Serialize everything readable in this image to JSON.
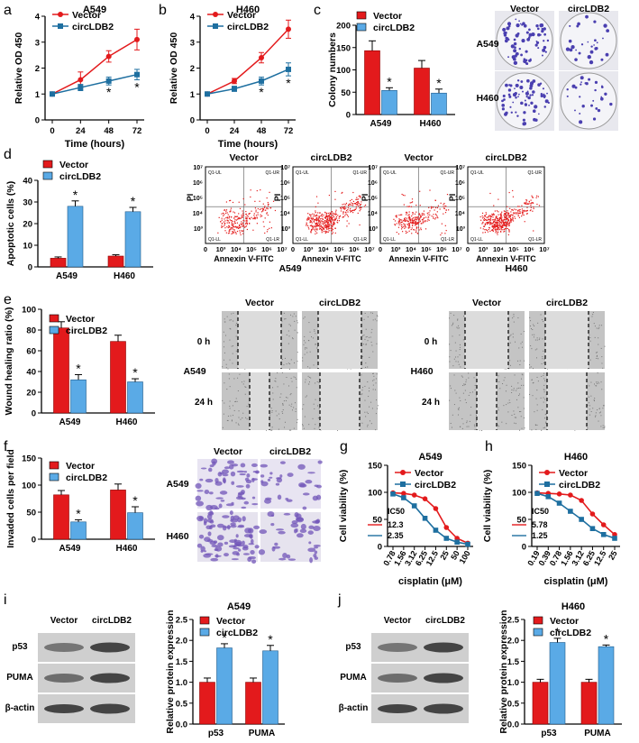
{
  "colors": {
    "vector": "#e31a1c",
    "circ": "#1e6fa0",
    "circ_bar": "#5aaae6",
    "dot": "#e41c1c",
    "gel": "#cfcfcf",
    "band": "#2b2b2b",
    "plate": "#f4f4f8",
    "colony": "#4a3fb0",
    "stain": "#7256b8"
  },
  "legend": {
    "vector": "Vector",
    "circ": "circLDB2"
  },
  "panels": {
    "a": {
      "letter": "a",
      "cell": "A549"
    },
    "b": {
      "letter": "b",
      "cell": "H460"
    },
    "c": {
      "letter": "c",
      "images": {
        "col_vector": "Vector",
        "col_circ": "circLDB2",
        "row1": "A549",
        "row2": "H460"
      }
    },
    "d": {
      "letter": "d",
      "flow_titles": [
        "Vector",
        "circLDB2",
        "Vector",
        "circLDB2"
      ],
      "flow_xlabel": "Annexin V-FITC",
      "flow_ylabel": "PI",
      "flow_quads": [
        "Q1-UL",
        "Q1-UR",
        "Q1-LL",
        "Q1-LR"
      ],
      "flow_cells": [
        "A549",
        "H460"
      ],
      "flow_ticks": [
        "0",
        "10³",
        "10⁴",
        "10⁵",
        "10⁶",
        "10⁷"
      ],
      "flow_yticks": [
        "0",
        "10³",
        "10⁴",
        "10⁵",
        "10⁶",
        "10⁷"
      ]
    },
    "e": {
      "letter": "e",
      "img_cols": [
        "Vector",
        "circLDB2"
      ],
      "img_rows": [
        "0 h",
        "24 h"
      ],
      "cells": [
        "A549",
        "H460"
      ]
    },
    "f": {
      "letter": "f",
      "img_cols": [
        "Vector",
        "circLDB2"
      ],
      "img_rows": [
        "A549",
        "H460"
      ]
    },
    "g": {
      "letter": "g",
      "cell": "A549",
      "ic50_title": "IC50",
      "ic50": [
        "12.3",
        "2.35"
      ]
    },
    "h": {
      "letter": "h",
      "cell": "H460",
      "ic50_title": "IC50",
      "ic50": [
        "5.78",
        "1.25"
      ]
    },
    "i": {
      "letter": "i",
      "cell": "A549",
      "blot_cols": [
        "Vector",
        "circLDB2"
      ],
      "blot_rows": [
        "p53",
        "PUMA",
        "β-actin"
      ]
    },
    "j": {
      "letter": "j",
      "cell": "H460",
      "blot_cols": [
        "Vector",
        "circLDB2"
      ],
      "blot_rows": [
        "p53",
        "PUMA",
        "β-actin"
      ]
    }
  },
  "chart_data": [
    {
      "id": "a",
      "type": "line",
      "title": "A549",
      "xlabel": "Time (hours)",
      "ylabel": "Relative OD 450",
      "x": [
        0,
        24,
        48,
        72
      ],
      "xlim": [
        0,
        72
      ],
      "ylim": [
        0,
        4
      ],
      "yticks": [
        0,
        1,
        2,
        3,
        4
      ],
      "series": [
        {
          "name": "Vector",
          "values": [
            1.0,
            1.55,
            2.45,
            3.1
          ],
          "err": [
            0.05,
            0.3,
            0.22,
            0.4
          ]
        },
        {
          "name": "circLDB2",
          "values": [
            1.0,
            1.25,
            1.5,
            1.75
          ],
          "err": [
            0.05,
            0.12,
            0.15,
            0.2
          ]
        }
      ],
      "sig": [
        false,
        false,
        true,
        true
      ]
    },
    {
      "id": "b",
      "type": "line",
      "title": "H460",
      "xlabel": "Time (hours)",
      "ylabel": "Relative OD 450",
      "x": [
        0,
        24,
        48,
        72
      ],
      "xlim": [
        0,
        72
      ],
      "ylim": [
        0,
        4
      ],
      "yticks": [
        0,
        1,
        2,
        3,
        4
      ],
      "series": [
        {
          "name": "Vector",
          "values": [
            1.0,
            1.5,
            2.4,
            3.5
          ],
          "err": [
            0.05,
            0.1,
            0.2,
            0.35
          ]
        },
        {
          "name": "circLDB2",
          "values": [
            1.0,
            1.2,
            1.5,
            1.95
          ],
          "err": [
            0.05,
            0.1,
            0.15,
            0.25
          ]
        }
      ],
      "sig": [
        false,
        false,
        true,
        true
      ]
    },
    {
      "id": "c",
      "type": "bar",
      "ylabel": "Colony numbers",
      "categories": [
        "A549",
        "H460"
      ],
      "ylim": [
        0,
        200
      ],
      "yticks": [
        0,
        50,
        100,
        150,
        200
      ],
      "series": [
        {
          "name": "Vector",
          "values": [
            143,
            104
          ],
          "err": [
            22,
            17
          ]
        },
        {
          "name": "circLDB2",
          "values": [
            54,
            48
          ],
          "err": [
            6,
            9
          ]
        }
      ],
      "sig": [
        true,
        true
      ]
    },
    {
      "id": "d",
      "type": "bar",
      "ylabel": "Apoptotic cells (%)",
      "categories": [
        "A549",
        "H460"
      ],
      "ylim": [
        0,
        40
      ],
      "yticks": [
        0,
        10,
        20,
        30,
        40
      ],
      "series": [
        {
          "name": "Vector",
          "values": [
            4.0,
            5.0
          ],
          "err": [
            0.6,
            0.6
          ]
        },
        {
          "name": "circLDB2",
          "values": [
            28,
            25.5
          ],
          "err": [
            2.5,
            2
          ]
        }
      ],
      "sig": [
        true,
        true
      ]
    },
    {
      "id": "e",
      "type": "bar",
      "ylabel": "Wound healing ratio (%)",
      "categories": [
        "A549",
        "H460"
      ],
      "ylim": [
        0,
        100
      ],
      "yticks": [
        0,
        20,
        40,
        60,
        80,
        100
      ],
      "series": [
        {
          "name": "Vector",
          "values": [
            82,
            69
          ],
          "err": [
            6,
            6
          ]
        },
        {
          "name": "circLDB2",
          "values": [
            32,
            30
          ],
          "err": [
            5,
            3
          ]
        }
      ],
      "sig": [
        true,
        true
      ]
    },
    {
      "id": "f",
      "type": "bar",
      "ylabel": "Invaded cells per field",
      "categories": [
        "A549",
        "H460"
      ],
      "ylim": [
        0,
        150
      ],
      "yticks": [
        0,
        50,
        100,
        150
      ],
      "series": [
        {
          "name": "Vector",
          "values": [
            82,
            91
          ],
          "err": [
            8,
            11
          ]
        },
        {
          "name": "circLDB2",
          "values": [
            32,
            49
          ],
          "err": [
            4,
            11
          ]
        }
      ],
      "sig": [
        true,
        true
      ]
    },
    {
      "id": "g",
      "type": "line",
      "title": "A549",
      "xlabel": "cisplatin (μM)",
      "ylabel": "Cell viability (%)",
      "categories": [
        "0.78",
        "1.56",
        "3.12",
        "6.25",
        "12.5",
        "25",
        "50",
        "100"
      ],
      "ylim": [
        0,
        150
      ],
      "yticks": [
        0,
        50,
        100,
        150
      ],
      "series": [
        {
          "name": "Vector",
          "values": [
            99,
            98,
            95,
            88,
            70,
            35,
            15,
            6
          ]
        },
        {
          "name": "circLDB2",
          "values": [
            97,
            90,
            75,
            52,
            30,
            15,
            8,
            4
          ]
        }
      ]
    },
    {
      "id": "h",
      "type": "line",
      "title": "H460",
      "xlabel": "cisplatin (μM)",
      "ylabel": "Cell viability (%)",
      "categories": [
        "0.19",
        "0.39",
        "0.78",
        "1.56",
        "3.12",
        "6.25",
        "12.5",
        "25"
      ],
      "ylim": [
        0,
        150
      ],
      "yticks": [
        0,
        50,
        100,
        150
      ],
      "series": [
        {
          "name": "Vector",
          "values": [
            99,
            98,
            97,
            95,
            85,
            60,
            40,
            22
          ]
        },
        {
          "name": "circLDB2",
          "values": [
            98,
            92,
            80,
            65,
            50,
            33,
            22,
            15
          ]
        }
      ]
    },
    {
      "id": "i",
      "type": "bar",
      "title": "A549",
      "ylabel": "Relative protein expression",
      "categories": [
        "p53",
        "PUMA"
      ],
      "ylim": [
        0,
        2.5
      ],
      "yticks": [
        "0.0",
        "0.5",
        "1.0",
        "1.5",
        "2.0",
        "2.5"
      ],
      "series": [
        {
          "name": "Vector",
          "values": [
            1.0,
            1.0
          ],
          "err": [
            0.1,
            0.1
          ]
        },
        {
          "name": "circLDB2",
          "values": [
            1.82,
            1.75
          ],
          "err": [
            0.1,
            0.13
          ]
        }
      ],
      "sig": [
        true,
        true
      ]
    },
    {
      "id": "j",
      "type": "bar",
      "title": "H460",
      "ylabel": "Relative protein expression",
      "categories": [
        "p53",
        "PUMA"
      ],
      "ylim": [
        0,
        2.5
      ],
      "yticks": [
        "0.0",
        "0.5",
        "1.0",
        "1.5",
        "2.0",
        "2.5"
      ],
      "series": [
        {
          "name": "Vector",
          "values": [
            1.0,
            1.0
          ],
          "err": [
            0.07,
            0.07
          ]
        },
        {
          "name": "circLDB2",
          "values": [
            1.95,
            1.85
          ],
          "err": [
            0.1,
            0.04
          ]
        }
      ],
      "sig": [
        true,
        true
      ]
    }
  ]
}
